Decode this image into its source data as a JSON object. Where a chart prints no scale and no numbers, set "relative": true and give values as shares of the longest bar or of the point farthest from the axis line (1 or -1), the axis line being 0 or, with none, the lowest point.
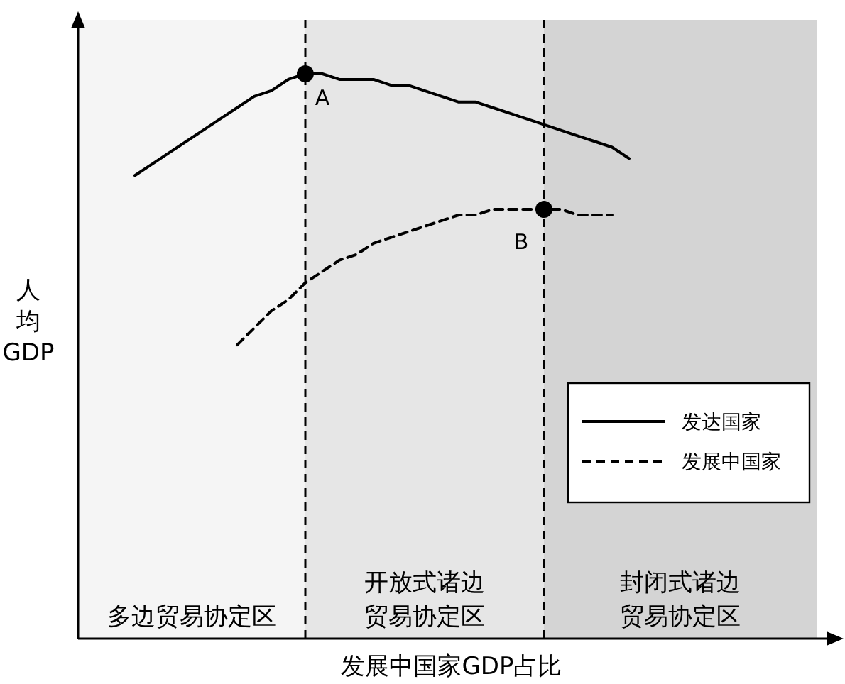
{
  "chart_data": {
    "type": "line",
    "relative": true,
    "xlabel": "发展中国家GDP占比",
    "ylabel": "人均GDP",
    "legend": "right",
    "categories": [
      null,
      null,
      null,
      null,
      null,
      null,
      null,
      null,
      null,
      null,
      null,
      null,
      null,
      null,
      null,
      null,
      null,
      null,
      null,
      null,
      null,
      null,
      null,
      null,
      null,
      null,
      null,
      null,
      null,
      null,
      null,
      null,
      null,
      null,
      null,
      null,
      null,
      null,
      null,
      null,
      null,
      null,
      null,
      null
    ],
    "series": [
      {
        "name": "发达国家",
        "color": "#000000",
        "line_style": "solid",
        "values": [
          null,
          null,
          null,
          0.82,
          0.84,
          0.86,
          0.88,
          0.9,
          0.92,
          0.94,
          0.96,
          0.97,
          0.99,
          1.0,
          1.0,
          0.99,
          0.99,
          0.99,
          0.98,
          0.98,
          0.97,
          0.96,
          0.95,
          0.95,
          0.94,
          0.93,
          0.92,
          0.91,
          0.9,
          0.89,
          0.88,
          0.87,
          0.85,
          null,
          null,
          null,
          null,
          null,
          null,
          null,
          null,
          null,
          null,
          null
        ]
      },
      {
        "name": "发展中国家",
        "color": "#000000",
        "line_style": "dashed",
        "values": [
          null,
          null,
          null,
          null,
          null,
          null,
          null,
          null,
          null,
          0.52,
          0.55,
          0.58,
          0.6,
          0.63,
          0.65,
          0.67,
          0.68,
          0.7,
          0.71,
          0.72,
          0.73,
          0.74,
          0.75,
          0.75,
          0.76,
          0.76,
          0.76,
          0.76,
          0.76,
          0.75,
          0.75,
          0.75,
          null,
          null,
          null,
          null,
          null,
          null,
          null,
          null,
          null,
          null,
          null,
          null
        ]
      }
    ],
    "annotations": [
      "A",
      "B",
      "多边贸易协定区",
      "开放式诸边贸易协定区",
      "封闭式诸边贸易协定区"
    ]
  }
}
